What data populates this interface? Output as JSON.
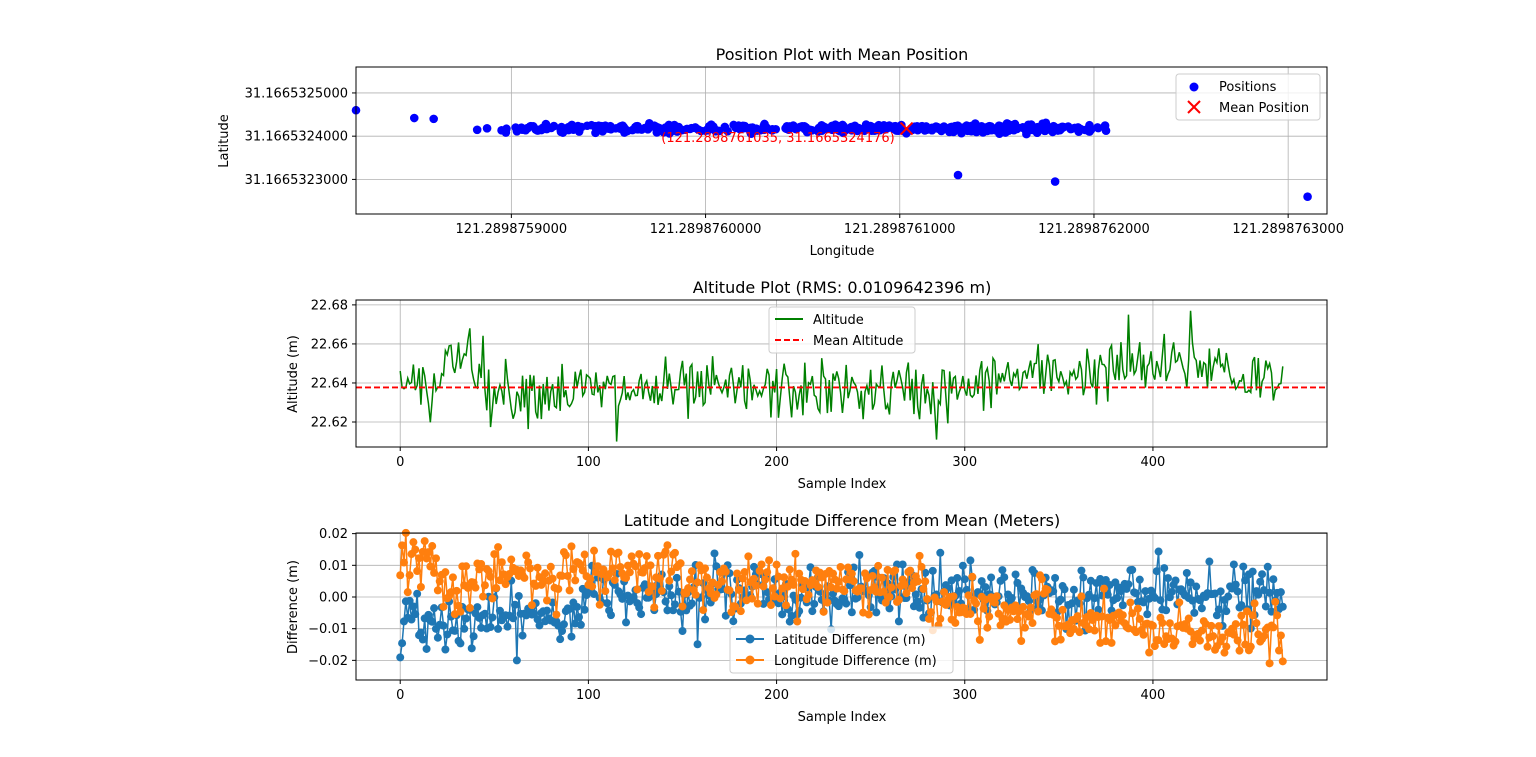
{
  "chart_data": [
    {
      "type": "scatter",
      "title": "Position Plot with Mean Position",
      "xlabel": "Longitude",
      "ylabel": "Latitude",
      "xlim": [
        121.28987582,
        121.28987632
      ],
      "ylim": [
        31.16653222,
        31.16653256
      ],
      "xticks": [
        121.2898759,
        121.289876,
        121.2898761,
        121.2898762,
        121.2898763
      ],
      "xtick_labels": [
        "121.2898759000",
        "121.2898760000",
        "121.2898761000",
        "121.2898762000",
        "121.2898763000"
      ],
      "yticks": [
        31.1665323,
        31.1665324,
        31.1665325
      ],
      "ytick_labels": [
        "31.1665323000",
        "31.1665324000",
        "31.1665325000"
      ],
      "grid": true,
      "legend_position": "upper right",
      "legend": [
        "Positions",
        "Mean Position"
      ],
      "colors": {
        "positions": "#0000ff",
        "mean": "#ff0000"
      },
      "mean_position": {
        "x": 121.2898761035,
        "y": 31.1665324176
      },
      "mean_annotation": "(121.2898761035, 31.1665324176)",
      "n_points": 470
    },
    {
      "type": "line",
      "title": "Altitude Plot (RMS: 0.0109642396 m)",
      "xlabel": "Sample Index",
      "ylabel": "Altitude (m)",
      "xlim": [
        -23.5,
        492.5
      ],
      "ylim": [
        22.6072,
        22.6825
      ],
      "xticks": [
        0,
        100,
        200,
        300,
        400
      ],
      "yticks": [
        22.62,
        22.64,
        22.66,
        22.68
      ],
      "ytick_labels": [
        "22.62",
        "22.64",
        "22.66",
        "22.68"
      ],
      "grid": true,
      "legend_position": "upper center",
      "series": [
        {
          "name": "Altitude",
          "color": "#008000",
          "style": "solid"
        },
        {
          "name": "Mean Altitude",
          "color": "#ff0000",
          "style": "dashed",
          "value": 22.6377
        }
      ],
      "n_points": 470
    },
    {
      "type": "line",
      "title": "Latitude and Longitude Difference from Mean (Meters)",
      "xlabel": "Sample Index",
      "ylabel": "Difference (m)",
      "xlim": [
        -23.5,
        492.5
      ],
      "ylim": [
        -0.0262,
        0.0202
      ],
      "xticks": [
        0,
        100,
        200,
        300,
        400
      ],
      "yticks": [
        -0.02,
        -0.01,
        0.0,
        0.01,
        0.02
      ],
      "ytick_labels": [
        "−0.02",
        "−0.01",
        "0.00",
        "0.01",
        "0.02"
      ],
      "grid": true,
      "legend_position": "lower center",
      "series": [
        {
          "name": "Latitude Difference (m)",
          "color": "#1f77b4",
          "marker": "o"
        },
        {
          "name": "Longitude Difference (m)",
          "color": "#ff7f0e",
          "marker": "o"
        }
      ],
      "n_points": 470
    }
  ]
}
